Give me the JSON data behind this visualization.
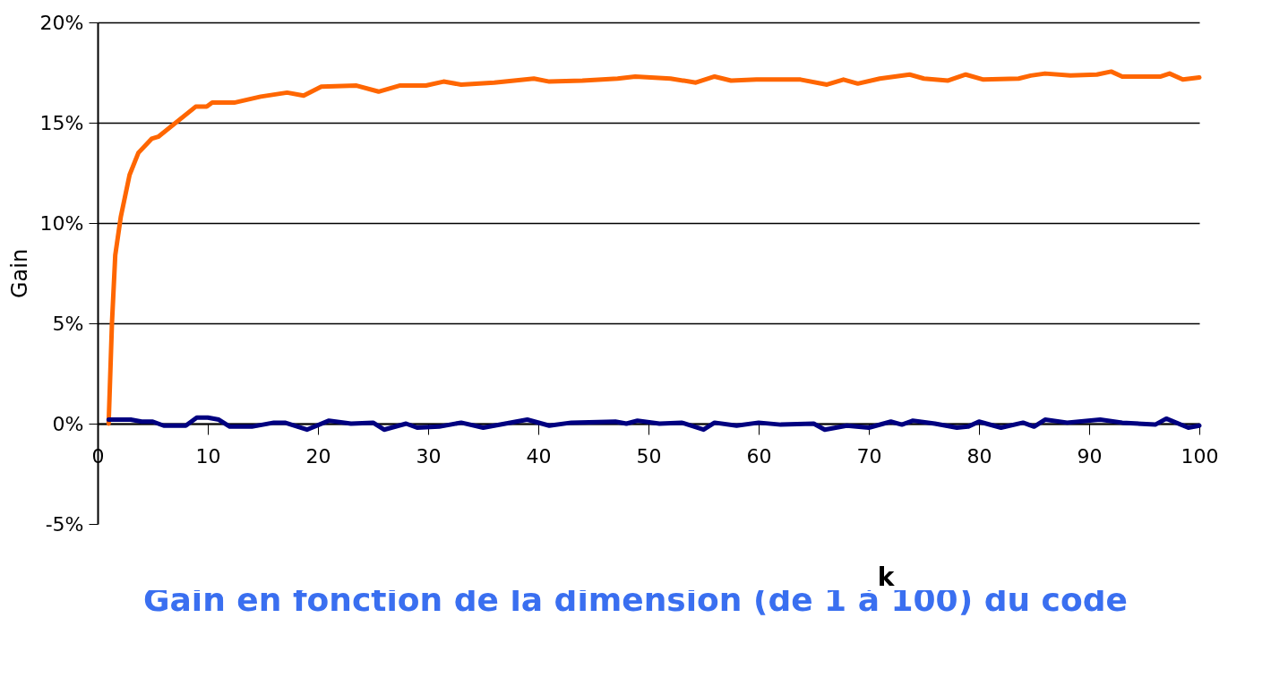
{
  "chart_data": {
    "type": "line",
    "xlabel": "k",
    "ylabel": "Gain",
    "annotations": [
      "Gain en fonction de la dimension (de 1 à 100) du code"
    ],
    "xlim": [
      0,
      100
    ],
    "xticks": [
      0,
      10,
      20,
      30,
      40,
      50,
      60,
      70,
      80,
      90,
      100
    ],
    "ylim": [
      -5,
      20
    ],
    "yticks": [
      {
        "value": -5,
        "label": "-5%"
      },
      {
        "value": 0,
        "label": "0%"
      },
      {
        "value": 5,
        "label": "5%"
      },
      {
        "value": 10,
        "label": "10%"
      },
      {
        "value": 15,
        "label": "15%"
      },
      {
        "value": 20,
        "label": "20%"
      }
    ],
    "grid": "y",
    "marker": "none",
    "line_style": "solid",
    "series": [
      {
        "color": "#ff6600",
        "x": [
          1,
          1.3,
          1.6,
          2.1,
          2.9,
          3.7,
          4.9,
          5.5,
          8.9,
          9.9,
          10.4,
          12.4,
          14.8,
          17.2,
          18.7,
          20.3,
          23.5,
          25.5,
          27.4,
          29.8,
          31.4,
          33,
          36,
          39.6,
          41,
          44,
          47.2,
          48.8,
          52,
          54.3,
          56,
          57.5,
          59.8,
          63.8,
          66.2,
          67.7,
          69,
          71,
          73.7,
          75,
          77.2,
          78.8,
          80.4,
          83.6,
          84.7,
          86,
          88.3,
          90.7,
          92,
          93,
          96.5,
          97.3,
          98.5,
          100
        ],
        "values": [
          0,
          5,
          8.4,
          10.3,
          12.4,
          13.5,
          14.2,
          14.3,
          15.8,
          15.8,
          16,
          16,
          16.3,
          16.5,
          16.35,
          16.8,
          16.85,
          16.55,
          16.85,
          16.85,
          17.05,
          16.9,
          17,
          17.2,
          17.05,
          17.1,
          17.2,
          17.3,
          17.2,
          17,
          17.3,
          17.1,
          17.15,
          17.15,
          16.9,
          17.15,
          16.95,
          17.2,
          17.4,
          17.2,
          17.1,
          17.4,
          17.15,
          17.2,
          17.35,
          17.45,
          17.35,
          17.4,
          17.55,
          17.3,
          17.3,
          17.45,
          17.15,
          17.25
        ]
      },
      {
        "color": "#000080",
        "x": [
          1,
          3,
          4,
          5,
          6,
          8,
          9,
          10,
          11,
          12,
          14,
          16,
          17,
          19,
          21,
          23,
          25,
          26,
          28,
          29,
          31,
          33,
          35,
          37,
          39,
          41,
          43,
          47,
          48,
          49,
          51,
          53,
          55,
          56,
          58,
          60,
          62,
          65,
          66,
          68,
          70,
          72,
          73,
          74,
          76,
          78,
          79,
          80,
          82,
          84,
          85,
          86,
          88,
          91,
          93,
          96,
          97,
          99,
          100
        ],
        "values": [
          0.2,
          0.2,
          0.1,
          0.1,
          -0.1,
          -0.1,
          0.3,
          0.3,
          0.2,
          -0.15,
          -0.15,
          0.05,
          0.05,
          -0.3,
          0.15,
          0,
          0.05,
          -0.3,
          0,
          -0.2,
          -0.15,
          0.05,
          -0.2,
          0,
          0.2,
          -0.1,
          0.05,
          0.1,
          0,
          0.15,
          0,
          0.05,
          -0.3,
          0.05,
          -0.1,
          0.05,
          -0.05,
          0,
          -0.3,
          -0.1,
          -0.2,
          0.1,
          -0.05,
          0.15,
          0,
          -0.2,
          -0.15,
          0.1,
          -0.2,
          0.05,
          -0.15,
          0.2,
          0.05,
          0.2,
          0.05,
          -0.05,
          0.25,
          -0.2,
          -0.1
        ]
      }
    ]
  }
}
